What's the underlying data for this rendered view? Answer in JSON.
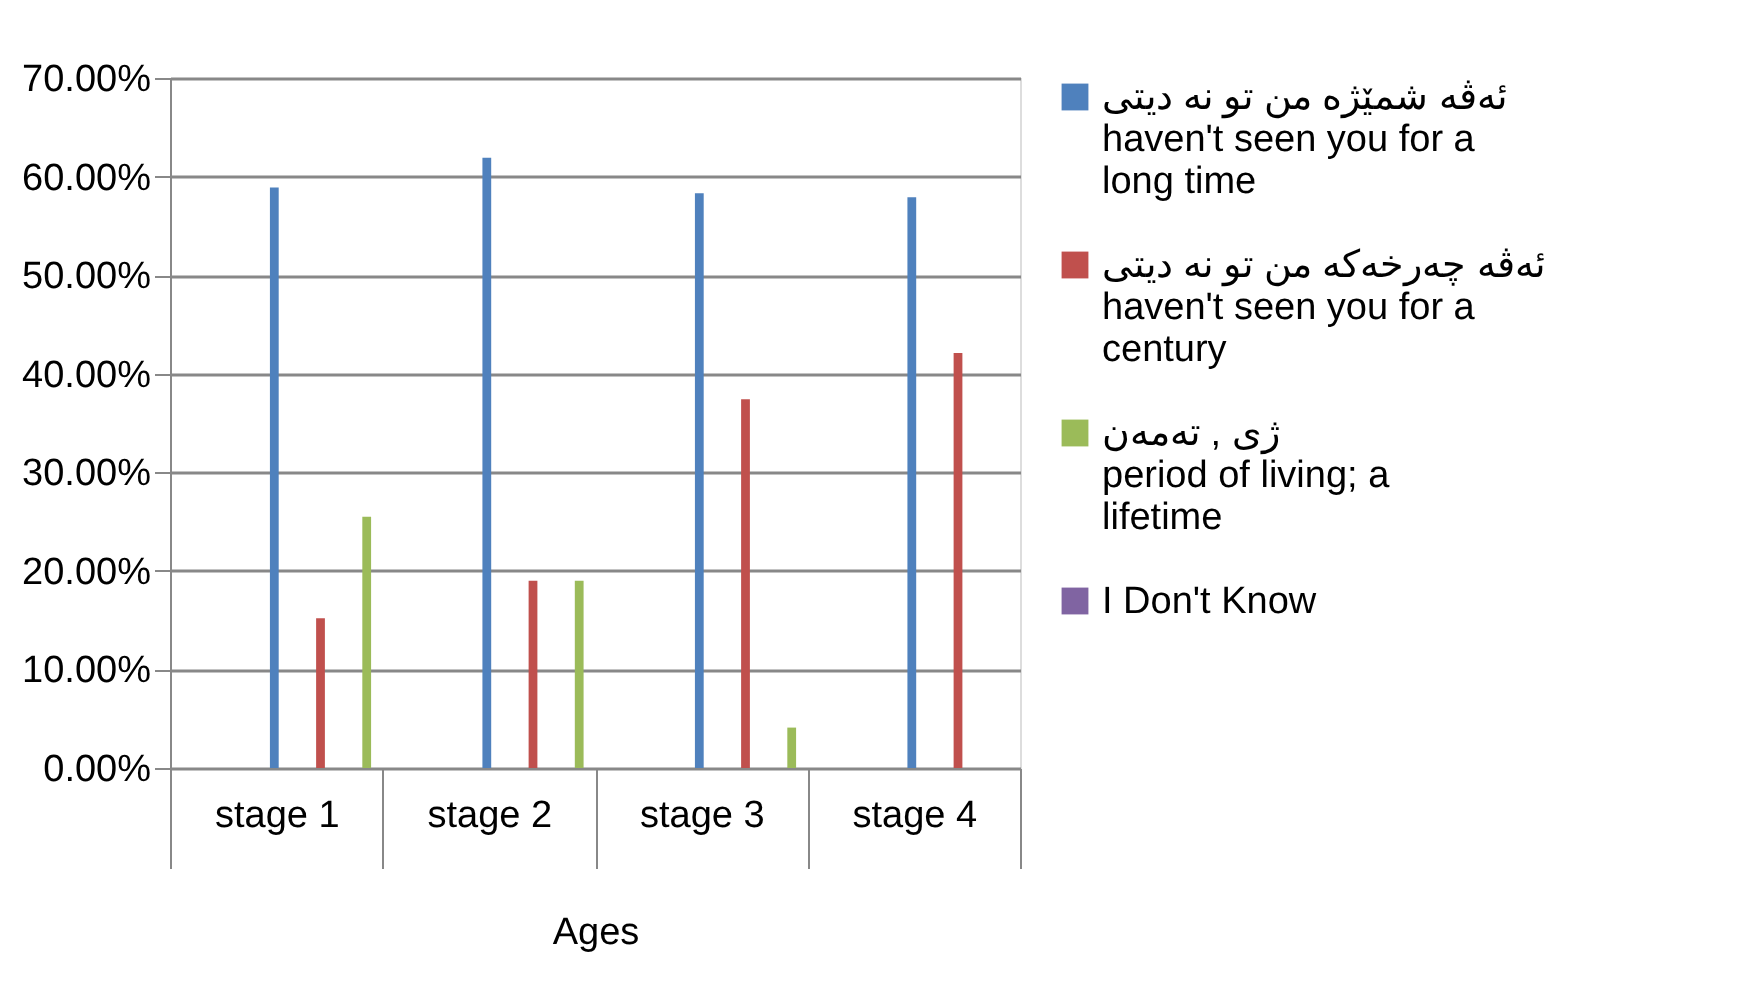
{
  "chart_data": {
    "type": "bar",
    "xlabel": "Ages",
    "categories": [
      "stage 1",
      "stage 2",
      "stage 3",
      "stage 4"
    ],
    "series": [
      {
        "name": "ئەڤە شمێژە من تو نە دیتی\nhaven't seen you for a\nlong time",
        "color": "#4f81bd",
        "values": [
          58.9,
          61.9,
          58.3,
          57.9
        ]
      },
      {
        "name": "ئەڤە چەرخەکە من تو نە دیتی\nhaven't seen you for a\ncentury",
        "color": "#c0504d",
        "values": [
          15.2,
          19.0,
          37.4,
          42.1
        ]
      },
      {
        "name": "ژی , تەمەن\nperiod of living; a\nlifetime",
        "color": "#9bbb59",
        "values": [
          25.5,
          19.0,
          4.1,
          0
        ]
      },
      {
        "name": "I Don't Know",
        "color": "#8064a2",
        "values": [
          0,
          0,
          0,
          0
        ]
      }
    ],
    "ylim": [
      0,
      70
    ],
    "yticks": [
      {
        "value": 0,
        "label": "0.00%"
      },
      {
        "value": 10,
        "label": "10.00%"
      },
      {
        "value": 20,
        "label": "20.00%"
      },
      {
        "value": 30,
        "label": "30.00%"
      },
      {
        "value": 40,
        "label": "40.00%"
      },
      {
        "value": 50,
        "label": "50.00%"
      },
      {
        "value": 60,
        "label": "60.00%"
      },
      {
        "value": 70,
        "label": "70.00%"
      }
    ],
    "grid": "y",
    "legend": "right"
  }
}
